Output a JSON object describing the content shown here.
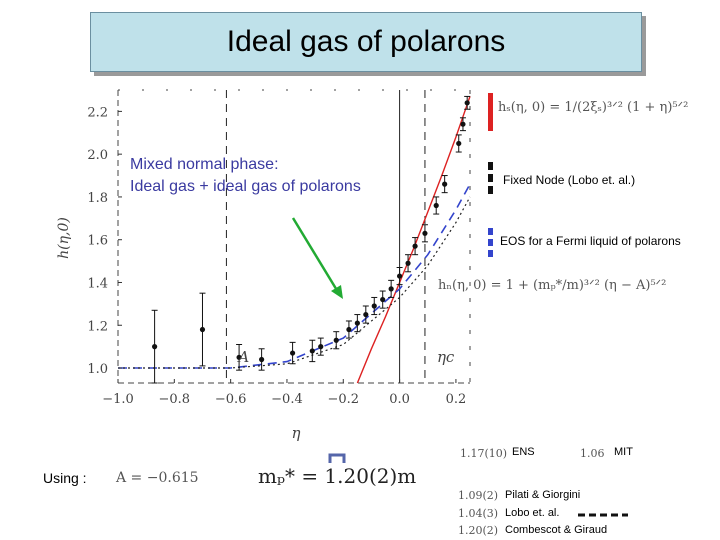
{
  "title": "Ideal gas of polarons",
  "callout": {
    "line1": "Mixed normal phase:",
    "line2": "Ideal gas + ideal gas of polarons"
  },
  "legend": {
    "fixed_node": "Fixed Node (Lobo et. al.)",
    "eos": "EOS for a Fermi liquid of polarons"
  },
  "formulas": {
    "hs": "hₛ(η, 0) = 1/(2ξₛ)³ᐟ² (1 + η)⁵ᐟ²",
    "hn": "hₙ(η, 0) = 1 + (mₚ*/m)³ᐟ² (η − A)⁵ᐟ²",
    "mass": "mₚ* = 1.20(2)m",
    "using_A": "A = −0.615"
  },
  "using_label": "Using :",
  "refs": {
    "ens_value": "1.17(10)",
    "ens_label": "ENS",
    "mit_value": "1.06",
    "mit_label": "MIT",
    "pilati_value": "1.09(2)",
    "pilati_label": "Pilati & Giorgini",
    "lobo_value": "1.04(3)",
    "lobo_label": "Lobo et. al.",
    "combescot_value": "1.20(2)",
    "combescot_label": "Combescot & Giraud"
  },
  "colors": {
    "hs_curve": "#dd2222",
    "eos_curve": "#3344cc",
    "arrow": "#22aa33",
    "points": "#111111"
  },
  "chart_data": {
    "type": "scatter",
    "xlabel": "η",
    "ylabel": "h(η,0)",
    "xlim": [
      -1.0,
      0.25
    ],
    "ylim": [
      0.93,
      2.3
    ],
    "xticks": [
      -1.0,
      -0.8,
      -0.6,
      -0.4,
      -0.2,
      0.0,
      0.2
    ],
    "xtick_labels": [
      "−1.0",
      "−0.8",
      "−0.6",
      "−0.4",
      "−0.2",
      "0.0",
      "0.2"
    ],
    "yticks": [
      1.0,
      1.2,
      1.4,
      1.6,
      1.8,
      2.0,
      2.2
    ],
    "ytick_labels": [
      "1.0",
      "1.2",
      "1.4",
      "1.6",
      "1.8",
      "2.0",
      "2.2"
    ],
    "annotations": [
      {
        "text": "A",
        "x": -0.615
      },
      {
        "text": "ηc",
        "x": 0.09
      }
    ],
    "vlines": [
      {
        "x": -0.615,
        "style": "dashed"
      },
      {
        "x": 0.0,
        "style": "solid"
      },
      {
        "x": 0.09,
        "style": "dashed"
      }
    ],
    "points": [
      {
        "x": -0.87,
        "y": 1.1,
        "err": 0.17
      },
      {
        "x": -0.7,
        "y": 1.18,
        "err": 0.17
      },
      {
        "x": -0.57,
        "y": 1.05,
        "err": 0.06
      },
      {
        "x": -0.49,
        "y": 1.04,
        "err": 0.05
      },
      {
        "x": -0.38,
        "y": 1.07,
        "err": 0.05
      },
      {
        "x": -0.31,
        "y": 1.08,
        "err": 0.05
      },
      {
        "x": -0.28,
        "y": 1.1,
        "err": 0.04
      },
      {
        "x": -0.225,
        "y": 1.13,
        "err": 0.04
      },
      {
        "x": -0.18,
        "y": 1.18,
        "err": 0.04
      },
      {
        "x": -0.15,
        "y": 1.21,
        "err": 0.04
      },
      {
        "x": -0.12,
        "y": 1.25,
        "err": 0.04
      },
      {
        "x": -0.09,
        "y": 1.29,
        "err": 0.04
      },
      {
        "x": -0.06,
        "y": 1.32,
        "err": 0.04
      },
      {
        "x": -0.03,
        "y": 1.37,
        "err": 0.04
      },
      {
        "x": 0.0,
        "y": 1.43,
        "err": 0.04
      },
      {
        "x": 0.03,
        "y": 1.49,
        "err": 0.04
      },
      {
        "x": 0.055,
        "y": 1.57,
        "err": 0.04
      },
      {
        "x": 0.09,
        "y": 1.63,
        "err": 0.04
      },
      {
        "x": 0.13,
        "y": 1.76,
        "err": 0.04
      },
      {
        "x": 0.16,
        "y": 1.86,
        "err": 0.04
      },
      {
        "x": 0.21,
        "y": 2.05,
        "err": 0.04
      },
      {
        "x": 0.225,
        "y": 2.14,
        "err": 0.03
      },
      {
        "x": 0.24,
        "y": 2.24,
        "err": 0.03
      }
    ],
    "curves": [
      {
        "style": "red-solid",
        "x": [
          -0.15,
          -0.1,
          -0.05,
          0.0,
          0.05,
          0.1,
          0.15,
          0.2,
          0.25
        ],
        "y": [
          0.93,
          1.09,
          1.24,
          1.4,
          1.56,
          1.73,
          1.9,
          2.08,
          2.27
        ]
      },
      {
        "style": "blue-dashed",
        "x": [
          -1.0,
          -0.8,
          -0.6,
          -0.4,
          -0.2,
          0.0,
          0.1,
          0.2,
          0.25
        ],
        "y": [
          1.0,
          1.0,
          1.0,
          1.03,
          1.14,
          1.37,
          1.53,
          1.74,
          1.86
        ]
      },
      {
        "style": "black-dotted",
        "x": [
          -1.0,
          -0.8,
          -0.6,
          -0.4,
          -0.2,
          0.0,
          0.1,
          0.2,
          0.25
        ],
        "y": [
          1.0,
          1.0,
          1.0,
          1.02,
          1.11,
          1.33,
          1.48,
          1.68,
          1.8
        ]
      }
    ]
  }
}
